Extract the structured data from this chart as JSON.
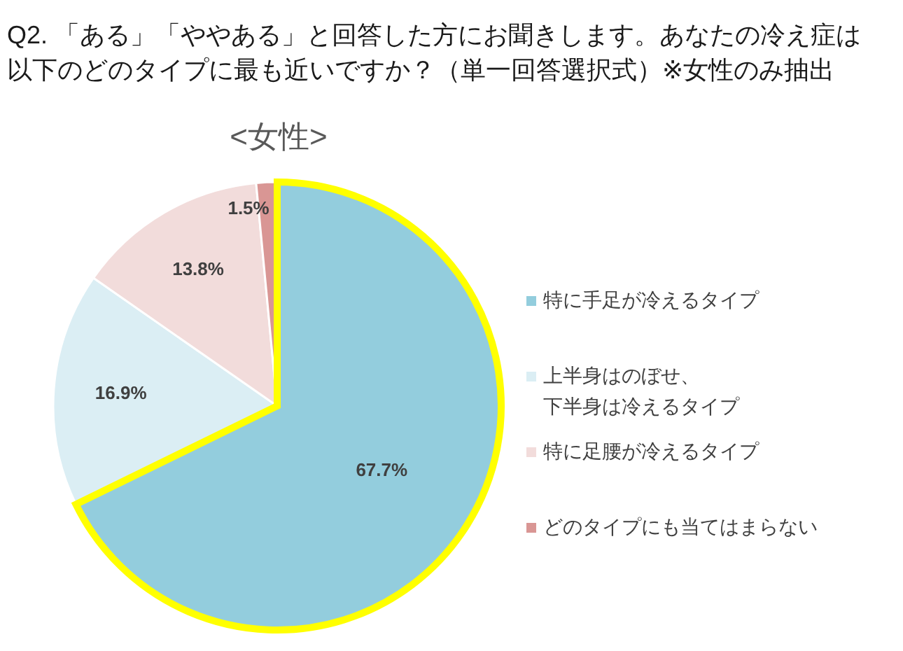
{
  "chart_data": {
    "type": "pie",
    "title": "Q2. 「ある」「ややある」と回答した方にお聞きします。あなたの冷え症は以下のどのタイプに最も近いですか？（単一回答選択式）※女性のみ抽出",
    "subtitle": "<女性>",
    "categories": [
      "特に手足が冷えるタイプ",
      "上半身はのぼせ、下半身は冷えるタイプ",
      "特に足腰が冷えるタイプ",
      "どのタイプにも当てはまらない"
    ],
    "values": [
      67.7,
      16.9,
      13.8,
      1.5
    ],
    "colors": [
      "#93cddd",
      "#dbeef4",
      "#f2dcdb",
      "#d99694"
    ],
    "value_labels": [
      "67.7%",
      "16.9%",
      "13.8%",
      "1.5%"
    ],
    "legend": "right"
  }
}
